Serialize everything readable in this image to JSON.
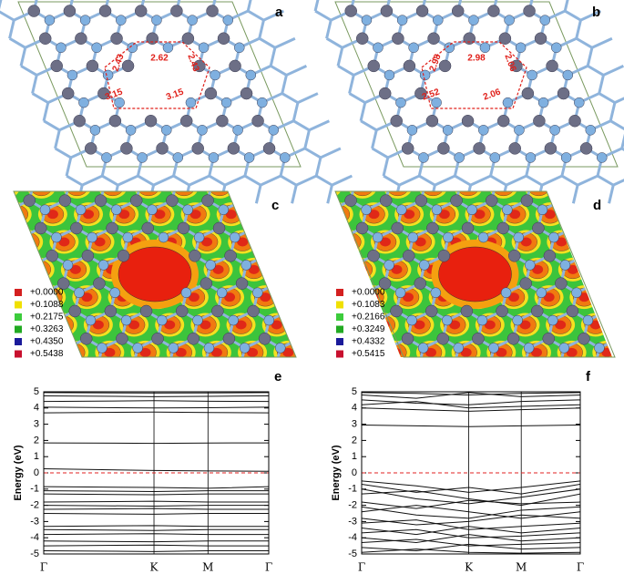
{
  "structures": [
    {
      "label": "a",
      "distances": [
        2.43,
        2.62,
        2.43,
        3.15,
        3.15
      ]
    },
    {
      "label": "b",
      "distances": [
        2.98,
        2.98,
        2.06,
        2.52,
        2.06
      ]
    }
  ],
  "charge_density": [
    {
      "label": "c",
      "legend": [
        {
          "label": "+0.0000",
          "color": "#d42020"
        },
        {
          "label": "+0.1088",
          "color": "#f0e000"
        },
        {
          "label": "+0.2175",
          "color": "#3ccc3c"
        },
        {
          "label": "+0.3263",
          "color": "#22aa22"
        },
        {
          "label": "+0.4350",
          "color": "#1a1a9a"
        },
        {
          "label": "+0.5438",
          "color": "#c8102e"
        }
      ]
    },
    {
      "label": "d",
      "legend": [
        {
          "label": "+0.0000",
          "color": "#d42020"
        },
        {
          "label": "+0.1083",
          "color": "#f0e000"
        },
        {
          "label": "+0.2166",
          "color": "#3ccc3c"
        },
        {
          "label": "+0.3249",
          "color": "#22aa22"
        },
        {
          "label": "+0.4332",
          "color": "#1a1a9a"
        },
        {
          "label": "+0.5415",
          "color": "#c8102e"
        }
      ]
    }
  ],
  "chart_data": [
    {
      "type": "line",
      "panel_label": "e",
      "ylabel": "Energy (eV)",
      "xlim": [
        0,
        1
      ],
      "ylim": [
        -5,
        5
      ],
      "xticks": [
        {
          "value": 0,
          "label": "Γ"
        },
        {
          "value": 0.49,
          "label": "K"
        },
        {
          "value": 0.73,
          "label": "M"
        },
        {
          "value": 1,
          "label": "Γ"
        }
      ],
      "yticks": [
        -5,
        -4,
        -3,
        -2,
        -1,
        0,
        1,
        2,
        3,
        4,
        5
      ],
      "fermi_level": 0,
      "band_color": "#111111",
      "fermi_color": "#e02020",
      "x": [
        0,
        0.49,
        0.73,
        1
      ],
      "bands": [
        [
          4.95,
          4.92,
          4.93,
          4.95
        ],
        [
          4.75,
          4.7,
          4.72,
          4.75
        ],
        [
          4.4,
          4.45,
          4.42,
          4.4
        ],
        [
          4.05,
          4.0,
          4.02,
          4.05
        ],
        [
          3.7,
          3.75,
          3.72,
          3.7
        ],
        [
          1.85,
          1.82,
          1.84,
          1.85
        ],
        [
          0.25,
          0.15,
          0.12,
          0.1
        ],
        [
          -0.85,
          -0.9,
          -0.95,
          -0.85
        ],
        [
          -1.1,
          -1.15,
          -1.1,
          -1.1
        ],
        [
          -1.3,
          -1.35,
          -1.3,
          -1.3
        ],
        [
          -1.8,
          -1.75,
          -1.8,
          -1.8
        ],
        [
          -2.0,
          -2.05,
          -2.0,
          -2.0
        ],
        [
          -2.25,
          -2.2,
          -2.25,
          -2.25
        ],
        [
          -2.5,
          -2.55,
          -2.5,
          -2.5
        ],
        [
          -3.3,
          -3.25,
          -3.3,
          -3.3
        ],
        [
          -3.5,
          -3.55,
          -3.5,
          -3.5
        ],
        [
          -3.8,
          -3.75,
          -3.8,
          -3.8
        ],
        [
          -4.2,
          -4.25,
          -4.2,
          -4.2
        ],
        [
          -4.5,
          -4.45,
          -4.5,
          -4.5
        ],
        [
          -4.8,
          -4.85,
          -4.8,
          -4.8
        ]
      ]
    },
    {
      "type": "line",
      "panel_label": "f",
      "ylabel": "Energy (eV)",
      "xlim": [
        0,
        1
      ],
      "ylim": [
        -5,
        5
      ],
      "xticks": [
        {
          "value": 0,
          "label": "Γ"
        },
        {
          "value": 0.49,
          "label": "K"
        },
        {
          "value": 0.73,
          "label": "M"
        },
        {
          "value": 1,
          "label": "Γ"
        }
      ],
      "yticks": [
        -5,
        -4,
        -3,
        -2,
        -1,
        0,
        1,
        2,
        3,
        4,
        5
      ],
      "fermi_level": 0,
      "band_color": "#111111",
      "fermi_color": "#e02020",
      "x": [
        0,
        0.25,
        0.49,
        0.73,
        1
      ],
      "bands": [
        [
          4.95,
          4.9,
          4.8,
          4.9,
          4.95
        ],
        [
          4.8,
          4.6,
          4.95,
          4.7,
          4.8
        ],
        [
          4.5,
          4.3,
          4.2,
          4.4,
          4.5
        ],
        [
          4.2,
          4.4,
          4.0,
          4.1,
          4.2
        ],
        [
          4.0,
          3.9,
          3.8,
          3.9,
          4.0
        ],
        [
          2.95,
          2.9,
          2.85,
          2.9,
          2.95
        ],
        [
          -0.5,
          -0.8,
          -1.2,
          -0.9,
          -0.5
        ],
        [
          -0.7,
          -1.2,
          -0.9,
          -1.3,
          -0.7
        ],
        [
          -1.0,
          -1.6,
          -1.9,
          -1.5,
          -1.0
        ],
        [
          -1.3,
          -1.1,
          -1.6,
          -2.0,
          -1.3
        ],
        [
          -1.8,
          -2.2,
          -1.7,
          -1.9,
          -1.8
        ],
        [
          -2.1,
          -2.6,
          -2.8,
          -2.3,
          -2.1
        ],
        [
          -2.4,
          -2.0,
          -2.4,
          -2.8,
          -2.4
        ],
        [
          -2.8,
          -3.2,
          -3.0,
          -2.6,
          -2.8
        ],
        [
          -3.1,
          -2.9,
          -3.5,
          -3.3,
          -3.1
        ],
        [
          -3.4,
          -3.8,
          -3.3,
          -3.7,
          -3.4
        ],
        [
          -3.7,
          -3.5,
          -4.0,
          -3.9,
          -3.7
        ],
        [
          -4.0,
          -4.3,
          -3.8,
          -4.2,
          -4.0
        ],
        [
          -4.3,
          -4.1,
          -4.5,
          -4.4,
          -4.3
        ],
        [
          -4.6,
          -4.8,
          -4.4,
          -4.7,
          -4.6
        ],
        [
          -4.9,
          -4.7,
          -4.9,
          -4.95,
          -4.9
        ]
      ]
    }
  ]
}
